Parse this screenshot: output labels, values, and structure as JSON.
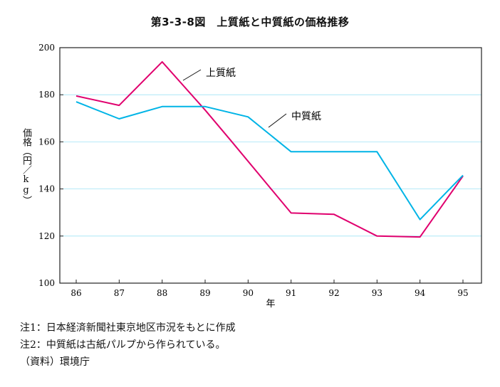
{
  "chart_data": {
    "type": "line",
    "title": "第3-3-8図　上質紙と中質紙の価格推移",
    "xlabel": "年",
    "ylabel": "価格（円／kg）",
    "categories": [
      "86",
      "87",
      "88",
      "89",
      "90",
      "91",
      "92",
      "93",
      "94",
      "95"
    ],
    "ylim": [
      100,
      200
    ],
    "yticks": [
      100,
      120,
      140,
      160,
      180,
      200
    ],
    "grid": "horizontal",
    "series": [
      {
        "name": "上質紙",
        "color": "#e0006e",
        "x": [
          86,
          87,
          88,
          89,
          89.6,
          91,
          92,
          93,
          94,
          95
        ],
        "values": [
          179.5,
          175.5,
          194,
          173.5,
          160.5,
          129.8,
          129.2,
          120,
          119.6,
          145.5
        ]
      },
      {
        "name": "中質紙",
        "color": "#00b4e6",
        "x": [
          86,
          87,
          88,
          89,
          90,
          91,
          92,
          93,
          94,
          95
        ],
        "values": [
          177,
          169.8,
          175,
          175,
          170.6,
          155.8,
          155.8,
          155.8,
          127,
          145.8
        ]
      }
    ]
  },
  "notes": [
    "注1：日本経済新聞社東京地区市況をもとに作成",
    "注2：中質紙は古紙パルプから作られている。",
    "（資料）環境庁"
  ]
}
